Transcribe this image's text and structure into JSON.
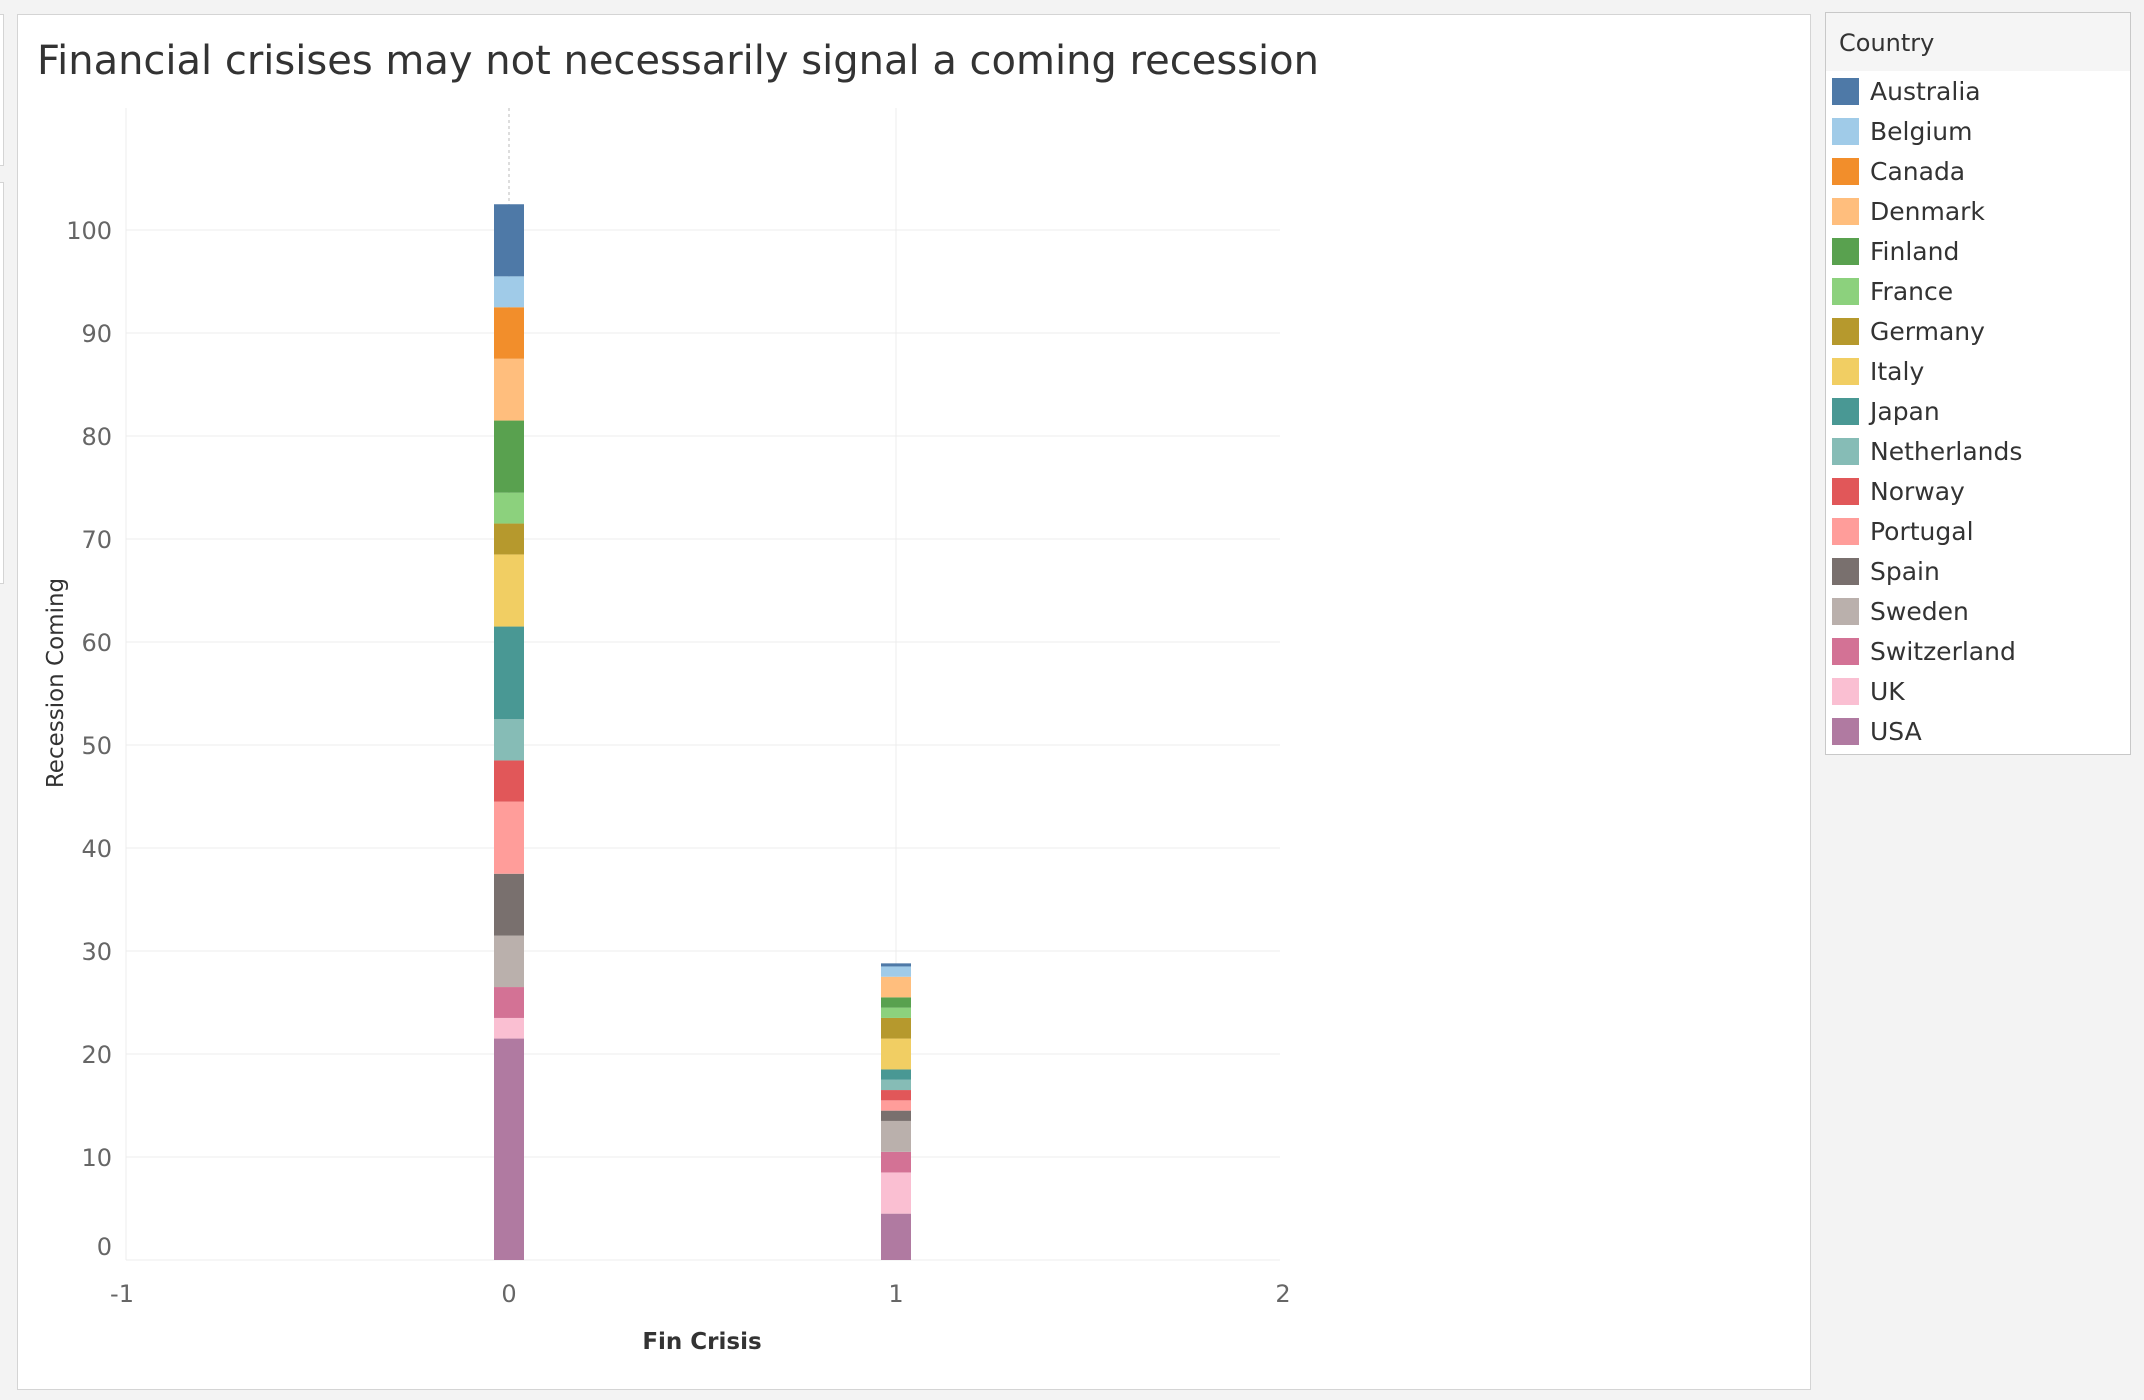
{
  "chart_data": {
    "type": "bar",
    "stacked": true,
    "title": "Financial crisises may not necessarily signal a coming recession",
    "xlabel": "Fin Crisis",
    "ylabel": "Recession Coming",
    "x_ticks": [
      -1,
      0,
      1,
      2
    ],
    "y_ticks": [
      0,
      10,
      20,
      30,
      40,
      50,
      60,
      70,
      80,
      90,
      100
    ],
    "xlim": [
      -1,
      2
    ],
    "ylim": [
      0,
      108
    ],
    "grid": true,
    "legend_title": "Country",
    "legend_position": "right",
    "categories": [
      0,
      1
    ],
    "series": [
      {
        "name": "Australia",
        "color": "#4e79a7",
        "values": [
          7,
          0.3
        ]
      },
      {
        "name": "Belgium",
        "color": "#a0cbe8",
        "values": [
          3,
          1
        ]
      },
      {
        "name": "Canada",
        "color": "#f28e2b",
        "values": [
          5,
          0
        ]
      },
      {
        "name": "Denmark",
        "color": "#ffbe7d",
        "values": [
          6,
          2
        ]
      },
      {
        "name": "Finland",
        "color": "#59a14f",
        "values": [
          7,
          1
        ]
      },
      {
        "name": "France",
        "color": "#8cd17d",
        "values": [
          3,
          1
        ]
      },
      {
        "name": "Germany",
        "color": "#b6992d",
        "values": [
          3,
          2
        ]
      },
      {
        "name": "Italy",
        "color": "#f1ce63",
        "values": [
          7,
          3
        ]
      },
      {
        "name": "Japan",
        "color": "#499894",
        "values": [
          9,
          1
        ]
      },
      {
        "name": "Netherlands",
        "color": "#86bcb6",
        "values": [
          4,
          1
        ]
      },
      {
        "name": "Norway",
        "color": "#e15759",
        "values": [
          4,
          1
        ]
      },
      {
        "name": "Portugal",
        "color": "#ff9d9a",
        "values": [
          7,
          1
        ]
      },
      {
        "name": "Spain",
        "color": "#79706e",
        "values": [
          6,
          1
        ]
      },
      {
        "name": "Sweden",
        "color": "#bab0ac",
        "values": [
          5,
          3
        ]
      },
      {
        "name": "Switzerland",
        "color": "#d37295",
        "values": [
          3,
          2
        ]
      },
      {
        "name": "UK",
        "color": "#fabfd2",
        "values": [
          2,
          4
        ]
      },
      {
        "name": "USA",
        "color": "#b07aa1",
        "values": [
          21.5,
          4.5
        ]
      }
    ]
  }
}
